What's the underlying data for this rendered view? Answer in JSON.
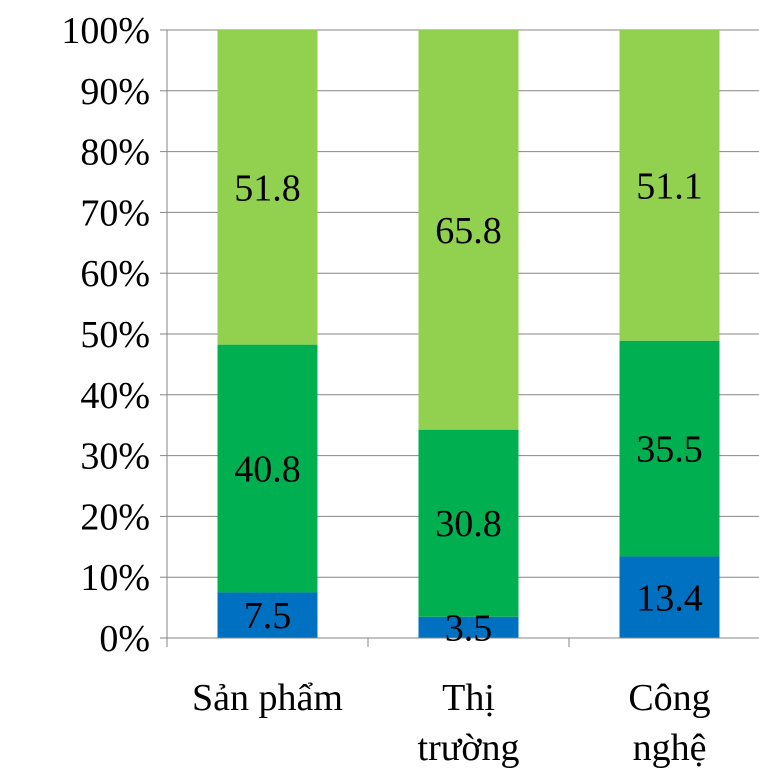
{
  "chart_data": {
    "type": "bar",
    "stacked": true,
    "percent_stacked": true,
    "categories": [
      [
        "Sản phẩm"
      ],
      [
        "Thị",
        "trường"
      ],
      [
        "Công",
        "nghệ"
      ]
    ],
    "series": [
      {
        "color": "#0070C0",
        "values": [
          7.5,
          3.5,
          13.4
        ]
      },
      {
        "color": "#00B050",
        "values": [
          40.8,
          30.8,
          35.5
        ]
      },
      {
        "color": "#92D050",
        "values": [
          51.8,
          65.8,
          51.1
        ]
      }
    ],
    "y_ticks": [
      "0%",
      "10%",
      "20%",
      "30%",
      "40%",
      "50%",
      "60%",
      "70%",
      "80%",
      "90%",
      "100%"
    ],
    "ylim": [
      0,
      100
    ],
    "grid": true,
    "legend": "none"
  }
}
